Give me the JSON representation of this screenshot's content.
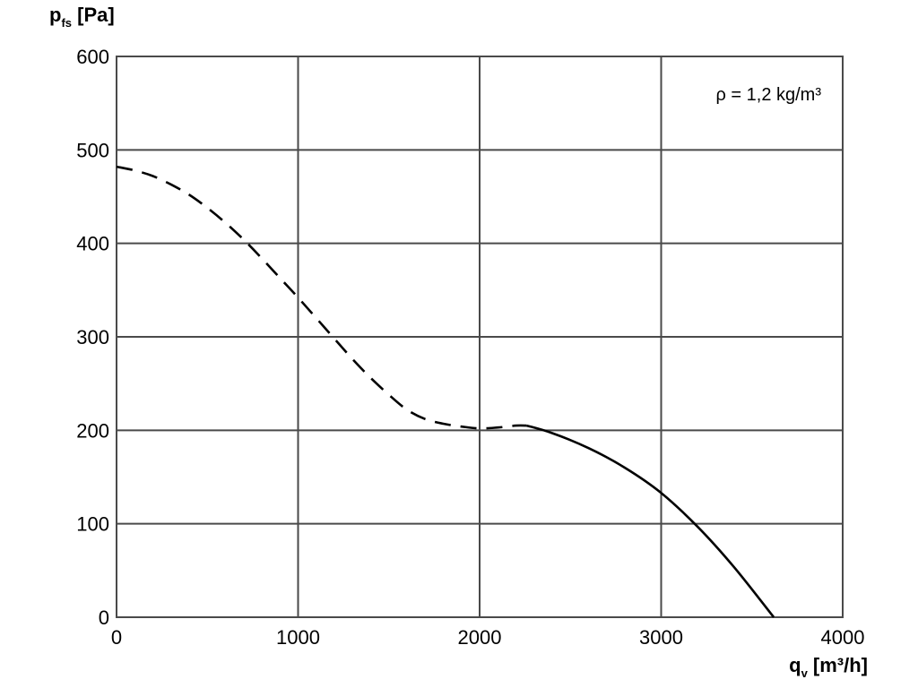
{
  "chart_data": {
    "type": "line",
    "title": "",
    "xlabel": {
      "main": "q",
      "sub": "v",
      "unit": " [m³/h]"
    },
    "ylabel": {
      "main": "p",
      "sub": "fs",
      "unit": " [Pa]"
    },
    "xlim": [
      0,
      4000
    ],
    "ylim": [
      0,
      600
    ],
    "x_ticks": [
      0,
      1000,
      2000,
      3000,
      4000
    ],
    "y_ticks": [
      0,
      100,
      200,
      300,
      400,
      500,
      600
    ],
    "x_tick_labels": [
      "0",
      "1000",
      "2000",
      "3000",
      "4000"
    ],
    "y_tick_labels": [
      "0",
      "100",
      "200",
      "300",
      "400",
      "500",
      "600"
    ],
    "grid": true,
    "annotation": "ρ = 1,2 kg/m³",
    "series": [
      {
        "style": "dashed",
        "x": [
          0,
          100,
          200,
          300,
          400,
          500,
          600,
          700,
          800,
          900,
          1000,
          1100,
          1200,
          1300,
          1400,
          1500,
          1600,
          1700,
          1800,
          1900,
          2000,
          2100,
          2200,
          2260
        ],
        "y": [
          482,
          478,
          472,
          463,
          452,
          438,
          422,
          404,
          384,
          363,
          342,
          320,
          298,
          276,
          256,
          238,
          222,
          212,
          207,
          204,
          202,
          203,
          205,
          205
        ]
      },
      {
        "style": "solid",
        "x": [
          2260,
          2400,
          2600,
          2800,
          3000,
          3200,
          3400,
          3620
        ],
        "y": [
          205,
          197,
          181,
          160,
          133,
          97,
          54,
          0
        ]
      }
    ]
  }
}
